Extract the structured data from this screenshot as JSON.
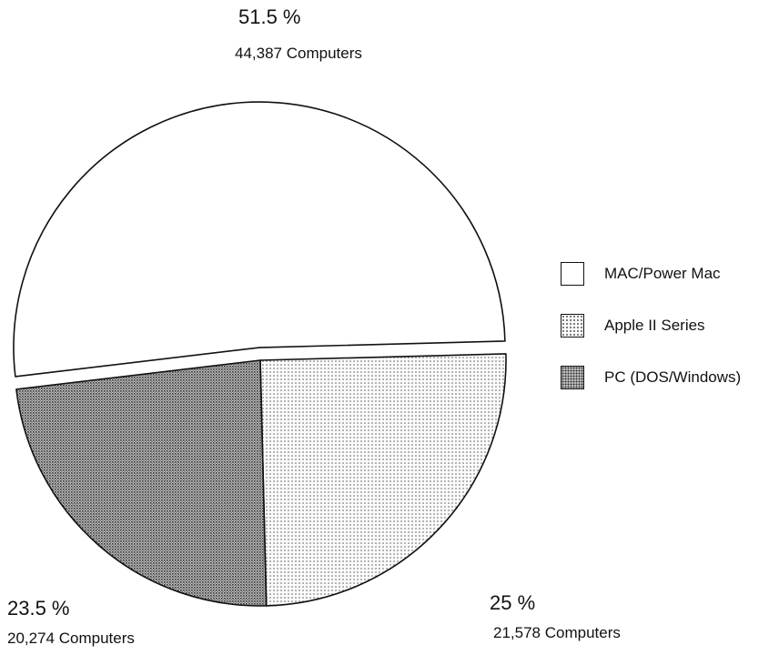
{
  "chart_data": {
    "type": "pie",
    "title": "",
    "categories": [
      "MAC/Power Mac",
      "Apple II Series",
      "PC (DOS/Windows)"
    ],
    "values": [
      44387,
      21578,
      20274
    ],
    "percent_labels": [
      "51.5 %",
      "25 %",
      "23.5 %"
    ],
    "count_labels": [
      "44,387 Computers",
      "21,578 Computers",
      "20,274 Computers"
    ],
    "fills": [
      "white",
      "light-dots",
      "dark-dots"
    ],
    "legend_position": "right",
    "exploded_slice": "MAC/Power Mac"
  },
  "colors": {
    "outline": "#111111",
    "light_fill": "#f4f4f4",
    "dark_fill": "#9b9b9b"
  }
}
